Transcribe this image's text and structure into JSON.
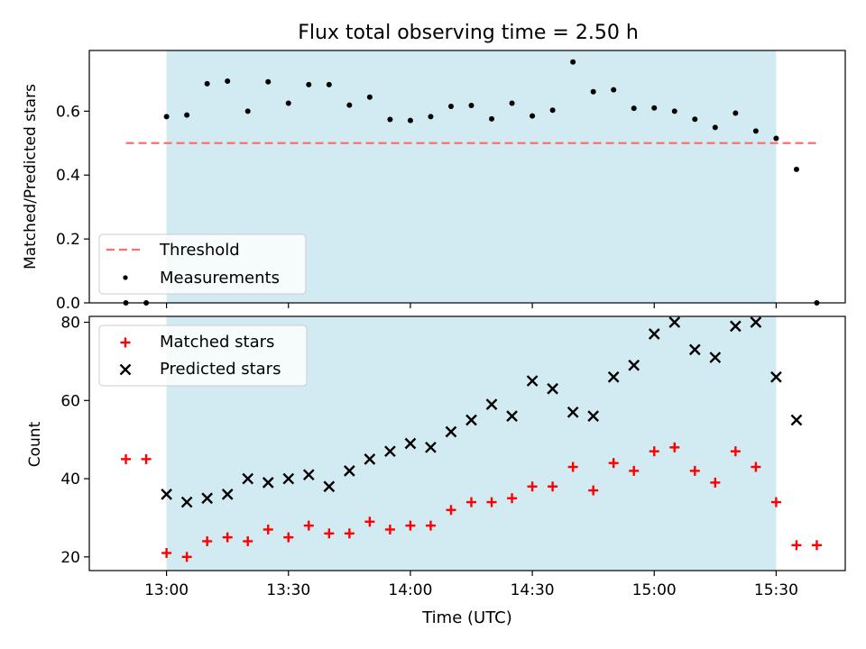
{
  "title": "Flux total observing time = 2.50 h",
  "colors": {
    "shade": "#add8e6",
    "threshold": "#ff6f6f",
    "measurement": "#000000",
    "matched": "#ff0000",
    "predicted": "#000000"
  },
  "chart_data": [
    {
      "type": "scatter",
      "panel": "top",
      "ylabel": "Matched/Predicted stars",
      "ylim": [
        0,
        0.79
      ],
      "yticks": [
        0.0,
        0.2,
        0.4,
        0.6
      ],
      "ytick_labels": [
        "0.0",
        "0.2",
        "0.4",
        "0.6"
      ],
      "legend_position": "lower-left",
      "shaded_span": [
        "13:00",
        "15:30"
      ],
      "threshold": {
        "name": "Threshold",
        "value": 0.5,
        "x_range": [
          "12:50",
          "15:40"
        ]
      },
      "series": [
        {
          "name": "Measurements",
          "x": [
            "12:50",
            "12:55",
            "13:00",
            "13:05",
            "13:10",
            "13:15",
            "13:20",
            "13:25",
            "13:30",
            "13:35",
            "13:40",
            "13:45",
            "13:50",
            "13:55",
            "14:00",
            "14:05",
            "14:10",
            "14:15",
            "14:20",
            "14:25",
            "14:30",
            "14:35",
            "14:40",
            "14:45",
            "14:50",
            "14:55",
            "15:00",
            "15:05",
            "15:10",
            "15:15",
            "15:20",
            "15:25",
            "15:30",
            "15:35",
            "15:40"
          ],
          "y": [
            0.0,
            0.0,
            0.583,
            0.588,
            0.686,
            0.694,
            0.6,
            0.692,
            0.625,
            0.683,
            0.683,
            0.619,
            0.644,
            0.574,
            0.571,
            0.583,
            0.615,
            0.618,
            0.576,
            0.625,
            0.585,
            0.603,
            0.754,
            0.661,
            0.667,
            0.609,
            0.61,
            0.6,
            0.575,
            0.549,
            0.594,
            0.538,
            0.515,
            0.418,
            0.0
          ]
        }
      ]
    },
    {
      "type": "scatter",
      "panel": "bottom",
      "xlabel": "Time (UTC)",
      "ylabel": "Count",
      "ylim": [
        16.5,
        81.5
      ],
      "yticks": [
        20,
        40,
        60,
        80
      ],
      "ytick_labels": [
        "20",
        "40",
        "60",
        "80"
      ],
      "xticks": [
        "13:00",
        "13:30",
        "14:00",
        "14:30",
        "15:00",
        "15:30"
      ],
      "xlim": [
        "12:41",
        "15:47"
      ],
      "legend_position": "upper-left",
      "shaded_span": [
        "13:00",
        "15:30"
      ],
      "series": [
        {
          "name": "Matched stars",
          "x": [
            "12:50",
            "12:55",
            "13:00",
            "13:05",
            "13:10",
            "13:15",
            "13:20",
            "13:25",
            "13:30",
            "13:35",
            "13:40",
            "13:45",
            "13:50",
            "13:55",
            "14:00",
            "14:05",
            "14:10",
            "14:15",
            "14:20",
            "14:25",
            "14:30",
            "14:35",
            "14:40",
            "14:45",
            "14:50",
            "14:55",
            "15:00",
            "15:05",
            "15:10",
            "15:15",
            "15:20",
            "15:25",
            "15:30",
            "15:35",
            "15:40"
          ],
          "y": [
            45,
            45,
            21,
            20,
            24,
            25,
            24,
            27,
            25,
            28,
            26,
            26,
            29,
            27,
            28,
            28,
            32,
            34,
            34,
            35,
            38,
            38,
            43,
            37,
            44,
            42,
            47,
            48,
            42,
            39,
            47,
            43,
            34,
            23,
            23
          ]
        },
        {
          "name": "Predicted stars",
          "x": [
            "13:00",
            "13:05",
            "13:10",
            "13:15",
            "13:20",
            "13:25",
            "13:30",
            "13:35",
            "13:40",
            "13:45",
            "13:50",
            "13:55",
            "14:00",
            "14:05",
            "14:10",
            "14:15",
            "14:20",
            "14:25",
            "14:30",
            "14:35",
            "14:40",
            "14:45",
            "14:50",
            "14:55",
            "15:00",
            "15:05",
            "15:10",
            "15:15",
            "15:20",
            "15:25",
            "15:30",
            "15:35"
          ],
          "y": [
            36,
            34,
            35,
            36,
            40,
            39,
            40,
            41,
            38,
            42,
            45,
            47,
            49,
            48,
            52,
            55,
            59,
            56,
            65,
            63,
            57,
            56,
            66,
            69,
            77,
            80,
            73,
            71,
            79,
            80,
            66,
            55
          ]
        }
      ]
    }
  ]
}
